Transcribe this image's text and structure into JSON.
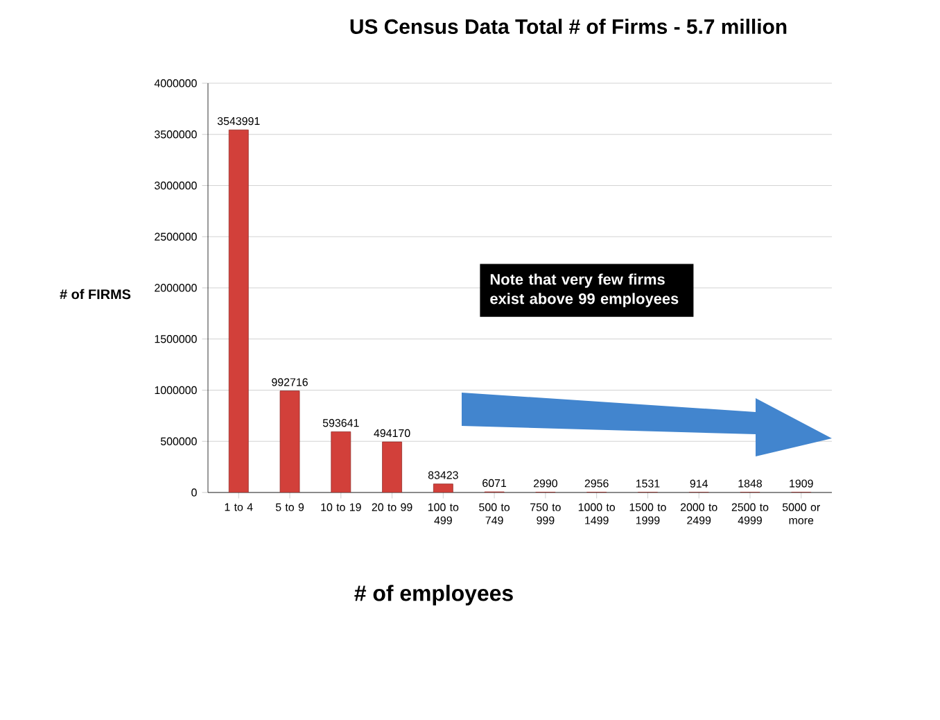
{
  "chart_data": {
    "type": "bar",
    "title": "US Census Data Total # of Firms - 5.7 million",
    "xlabel": "# of employees",
    "ylabel": "# of FIRMS",
    "categories": [
      "1 to 4",
      "5 to 9",
      "10 to 19",
      "20 to 99",
      "100 to 499",
      "500 to 749",
      "750 to 999",
      "1000 to 1499",
      "1500 to 1999",
      "2000 to 2499",
      "2500 to 4999",
      "5000 or more"
    ],
    "values": [
      3543991,
      992716,
      593641,
      494170,
      83423,
      6071,
      2990,
      2956,
      1531,
      914,
      1848,
      1909
    ],
    "color": "#d2403a",
    "ylim": [
      0,
      4000000
    ],
    "yticks": [
      0,
      500000,
      1000000,
      1500000,
      2000000,
      2500000,
      3000000,
      3500000,
      4000000
    ],
    "grid": "y",
    "data_labels": true,
    "annotations": [
      "Note that very few firms exist above  99 employees"
    ]
  }
}
